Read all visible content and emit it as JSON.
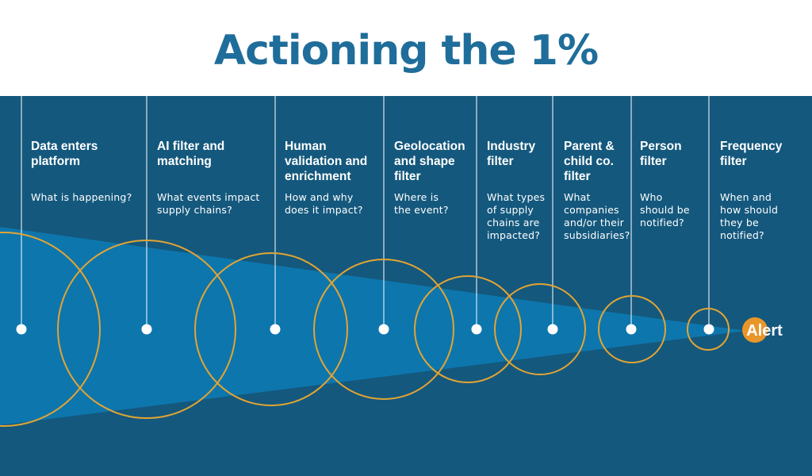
{
  "title": "Actioning the 1%",
  "colors": {
    "background": "#14587d",
    "funnel": "#0d76ad",
    "circle": "#e3a433",
    "title": "#1f6d9a",
    "alert_badge": "#e8962a"
  },
  "steps": [
    {
      "title": "Data enters\nplatform",
      "description": "What is happening?"
    },
    {
      "title": "AI filter and\nmatching",
      "description": "What events impact\nsupply chains?"
    },
    {
      "title": "Human\nvalidation and\nenrichment",
      "description": "How and why\ndoes it impact?"
    },
    {
      "title": "Geolocation\nand shape\nfilter",
      "description": "Where is\nthe event?"
    },
    {
      "title": "Industry\nfilter",
      "description": "What types\nof supply\nchains are\nimpacted?"
    },
    {
      "title": "Parent &\nchild co.\nfilter",
      "description": "What\ncompanies\nand/or their\nsubsidiaries?"
    },
    {
      "title": "Person\nfilter",
      "description": "Who\nshould be\nnotified?"
    },
    {
      "title": "Frequency\nfilter",
      "description": "When and\nhow should\nthey be\nnotified?"
    }
  ],
  "endpoint": {
    "label": "Alert",
    "icon": "alert-badge-icon"
  }
}
